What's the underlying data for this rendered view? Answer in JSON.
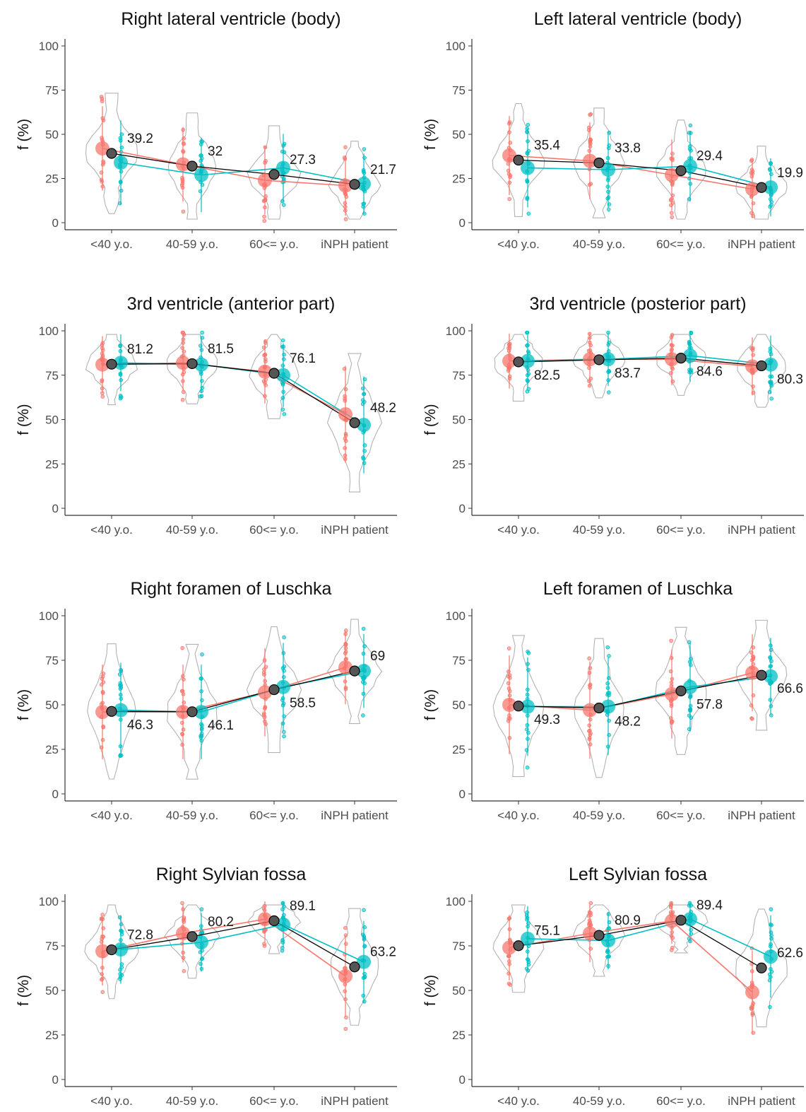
{
  "chart_data": [
    {
      "type": "scatter",
      "title": "Right lateral ventricle (body)",
      "ylabel": "f (%)",
      "xlabel": "",
      "ylim": [
        0,
        100
      ],
      "yticks": [
        "0",
        "25",
        "50",
        "75",
        "100"
      ],
      "categories": [
        "<40 y.o.",
        "40-59 y.o.",
        "60<= y.o.",
        "iNPH patient"
      ],
      "series": [
        {
          "color": "#F8766D",
          "values": [
            42,
            33,
            24,
            21
          ]
        },
        {
          "color": "#00BFC4",
          "values": [
            34,
            27,
            31,
            22
          ]
        },
        {
          "color": "#000000",
          "values": [
            39.2,
            32,
            27.3,
            21.7
          ]
        }
      ],
      "mean_labels": [
        "39.2",
        "32",
        "27.3",
        "21.7"
      ],
      "label_offsets": [
        11,
        11,
        11,
        11
      ]
    },
    {
      "type": "scatter",
      "title": "Left lateral ventricle (body)",
      "ylabel": "f (%)",
      "xlabel": "",
      "ylim": [
        0,
        100
      ],
      "yticks": [
        "0",
        "25",
        "50",
        "75",
        "100"
      ],
      "categories": [
        "<40 y.o.",
        "40-59 y.o.",
        "60<= y.o.",
        "iNPH patient"
      ],
      "series": [
        {
          "color": "#F8766D",
          "values": [
            38,
            35,
            27,
            19
          ]
        },
        {
          "color": "#00BFC4",
          "values": [
            31,
            30,
            32,
            20
          ]
        },
        {
          "color": "#000000",
          "values": [
            35.4,
            33.8,
            29.4,
            19.9
          ]
        }
      ],
      "mean_labels": [
        "35.4",
        "33.8",
        "29.4",
        "19.9"
      ],
      "label_offsets": [
        11,
        11,
        11,
        11
      ]
    },
    {
      "type": "scatter",
      "title": "3rd ventricle (anterior part)",
      "ylabel": "f (%)",
      "xlabel": "",
      "ylim": [
        0,
        100
      ],
      "yticks": [
        "0",
        "25",
        "50",
        "75",
        "100"
      ],
      "categories": [
        "<40 y.o.",
        "40-59 y.o.",
        "60<= y.o.",
        "iNPH patient"
      ],
      "series": [
        {
          "color": "#F8766D",
          "values": [
            81,
            82,
            77,
            53
          ]
        },
        {
          "color": "#00BFC4",
          "values": [
            82,
            81,
            75,
            47
          ]
        },
        {
          "color": "#000000",
          "values": [
            81.2,
            81.5,
            76.1,
            48.2
          ]
        }
      ],
      "mean_labels": [
        "81.2",
        "81.5",
        "76.1",
        "48.2"
      ],
      "label_offsets": [
        11,
        11,
        11,
        11
      ]
    },
    {
      "type": "scatter",
      "title": "3rd ventricle (posterior part)",
      "ylabel": "f (%)",
      "xlabel": "",
      "ylim": [
        0,
        100
      ],
      "yticks": [
        "0",
        "25",
        "50",
        "75",
        "100"
      ],
      "categories": [
        "<40 y.o.",
        "40-59 y.o.",
        "60<= y.o.",
        "iNPH patient"
      ],
      "series": [
        {
          "color": "#F8766D",
          "values": [
            83,
            84,
            84,
            80
          ]
        },
        {
          "color": "#00BFC4",
          "values": [
            83,
            84,
            86,
            81
          ]
        },
        {
          "color": "#000000",
          "values": [
            82.5,
            83.7,
            84.6,
            80.3
          ]
        }
      ],
      "mean_labels": [
        "82.5",
        "83.7",
        "84.6",
        "80.3"
      ],
      "label_offsets": [
        -11,
        -11,
        -11,
        -11
      ]
    },
    {
      "type": "scatter",
      "title": "Right foramen of Luschka",
      "ylabel": "f (%)",
      "xlabel": "",
      "ylim": [
        0,
        100
      ],
      "yticks": [
        "0",
        "25",
        "50",
        "75",
        "100"
      ],
      "categories": [
        "<40 y.o.",
        "40-59 y.o.",
        "60<= y.o.",
        "iNPH patient"
      ],
      "series": [
        {
          "color": "#F8766D",
          "values": [
            46,
            46,
            57,
            71
          ]
        },
        {
          "color": "#00BFC4",
          "values": [
            47,
            46,
            60,
            69
          ]
        },
        {
          "color": "#000000",
          "values": [
            46.3,
            46.1,
            58.5,
            69
          ]
        }
      ],
      "mean_labels": [
        "46.3",
        "46.1",
        "58.5",
        "69"
      ],
      "label_offsets": [
        -11,
        -11,
        -11,
        11
      ]
    },
    {
      "type": "scatter",
      "title": "Left foramen of Luschka",
      "ylabel": "f (%)",
      "xlabel": "",
      "ylim": [
        0,
        100
      ],
      "yticks": [
        "0",
        "25",
        "50",
        "75",
        "100"
      ],
      "categories": [
        "<40 y.o.",
        "40-59 y.o.",
        "60<= y.o.",
        "iNPH patient"
      ],
      "series": [
        {
          "color": "#F8766D",
          "values": [
            50,
            47,
            56,
            68
          ]
        },
        {
          "color": "#00BFC4",
          "values": [
            49,
            49,
            60,
            66
          ]
        },
        {
          "color": "#000000",
          "values": [
            49.3,
            48.2,
            57.8,
            66.6
          ]
        }
      ],
      "mean_labels": [
        "49.3",
        "48.2",
        "57.8",
        "66.6"
      ],
      "label_offsets": [
        -11,
        -11,
        -11,
        -11
      ]
    },
    {
      "type": "scatter",
      "title": "Right Sylvian fossa",
      "ylabel": "f (%)",
      "xlabel": "",
      "ylim": [
        0,
        100
      ],
      "yticks": [
        "0",
        "25",
        "50",
        "75",
        "100"
      ],
      "categories": [
        "<40 y.o.",
        "40-59 y.o.",
        "60<= y.o.",
        "iNPH patient"
      ],
      "series": [
        {
          "color": "#F8766D",
          "values": [
            72,
            82,
            90,
            58
          ]
        },
        {
          "color": "#00BFC4",
          "values": [
            73,
            77,
            87,
            66
          ]
        },
        {
          "color": "#000000",
          "values": [
            72.8,
            80.2,
            89.1,
            63.2
          ]
        }
      ],
      "mean_labels": [
        "72.8",
        "80.2",
        "89.1",
        "63.2"
      ],
      "label_offsets": [
        11,
        11,
        11,
        11
      ]
    },
    {
      "type": "scatter",
      "title": "Left Sylvian fossa",
      "ylabel": "f (%)",
      "xlabel": "",
      "ylim": [
        0,
        100
      ],
      "yticks": [
        "0",
        "25",
        "50",
        "75",
        "100"
      ],
      "categories": [
        "<40 y.o.",
        "40-59 y.o.",
        "60<= y.o.",
        "iNPH patient"
      ],
      "series": [
        {
          "color": "#F8766D",
          "values": [
            74,
            82,
            89,
            49
          ]
        },
        {
          "color": "#00BFC4",
          "values": [
            79,
            78,
            90,
            69
          ]
        },
        {
          "color": "#000000",
          "values": [
            75.1,
            80.9,
            89.4,
            62.6
          ]
        }
      ],
      "mean_labels": [
        "75.1",
        "80.9",
        "89.4",
        "62.6"
      ],
      "label_offsets": [
        11,
        11,
        11,
        11
      ]
    }
  ]
}
